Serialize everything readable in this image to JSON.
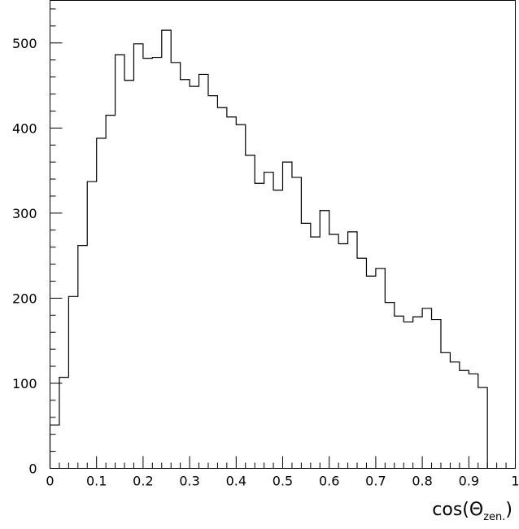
{
  "chart_data": {
    "type": "bar",
    "style": "step-histogram",
    "title": "",
    "xlabel": {
      "prefix": "cos(",
      "symbol": "Θ",
      "subscript": "zen.",
      "suffix": ")"
    },
    "ylabel": "",
    "xlim": [
      0,
      1
    ],
    "ylim": [
      0,
      550
    ],
    "grid": false,
    "bin_width": 0.02,
    "x_bin_starts": [
      0.0,
      0.02,
      0.04,
      0.06,
      0.08,
      0.1,
      0.12,
      0.14,
      0.16,
      0.18,
      0.2,
      0.22,
      0.24,
      0.26,
      0.28,
      0.3,
      0.32,
      0.34,
      0.36,
      0.38,
      0.4,
      0.42,
      0.44,
      0.46,
      0.48,
      0.5,
      0.52,
      0.54,
      0.56,
      0.58,
      0.6,
      0.62,
      0.64,
      0.66,
      0.68,
      0.7,
      0.72,
      0.74,
      0.76,
      0.78,
      0.8,
      0.82,
      0.84,
      0.86,
      0.88,
      0.9,
      0.92
    ],
    "values": [
      51,
      107,
      202,
      262,
      337,
      388,
      415,
      486,
      456,
      499,
      482,
      483,
      515,
      477,
      457,
      449,
      463,
      438,
      424,
      413,
      404,
      368,
      335,
      348,
      327,
      360,
      342,
      288,
      272,
      303,
      275,
      264,
      278,
      247,
      226,
      235,
      195,
      179,
      172,
      178,
      188,
      175,
      136,
      125,
      115,
      111,
      95
    ],
    "x_ticks": [
      "0",
      "0.1",
      "0.2",
      "0.3",
      "0.4",
      "0.5",
      "0.6",
      "0.7",
      "0.8",
      "0.9",
      "1"
    ],
    "x_tick_values": [
      0,
      0.1,
      0.2,
      0.3,
      0.4,
      0.5,
      0.6,
      0.7,
      0.8,
      0.9,
      1
    ],
    "y_ticks": [
      "0",
      "100",
      "200",
      "300",
      "400",
      "500"
    ],
    "y_tick_values": [
      0,
      100,
      200,
      300,
      400,
      500
    ]
  }
}
